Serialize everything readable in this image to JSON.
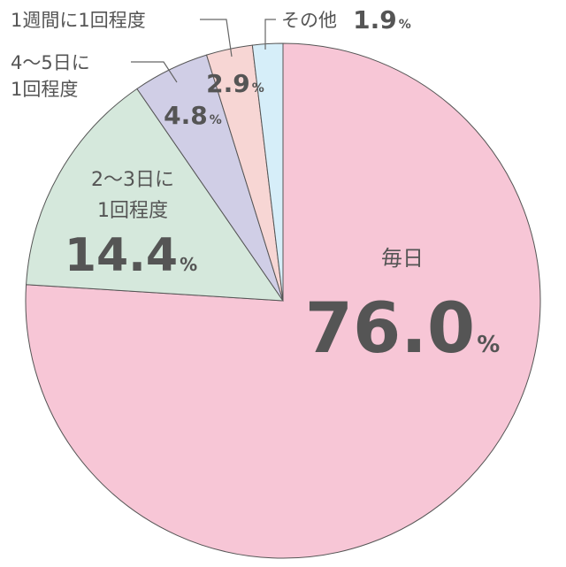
{
  "chart_data": {
    "type": "pie",
    "categories": [
      [
        "毎日"
      ],
      [
        "2〜3日に",
        "1回程度"
      ],
      [
        "4〜5日に",
        "1回程度"
      ],
      [
        "1週間に1回程度"
      ],
      [
        "その他"
      ]
    ],
    "values": [
      76.0,
      14.4,
      4.8,
      2.9,
      1.9
    ],
    "value_labels": [
      "76.0",
      "14.4",
      "4.8",
      "2.9",
      "1.9"
    ],
    "unit": "%",
    "colors": [
      "#f7c6d6",
      "#d5e8dc",
      "#d0cee6",
      "#f7d6d4",
      "#d6eef9"
    ]
  }
}
